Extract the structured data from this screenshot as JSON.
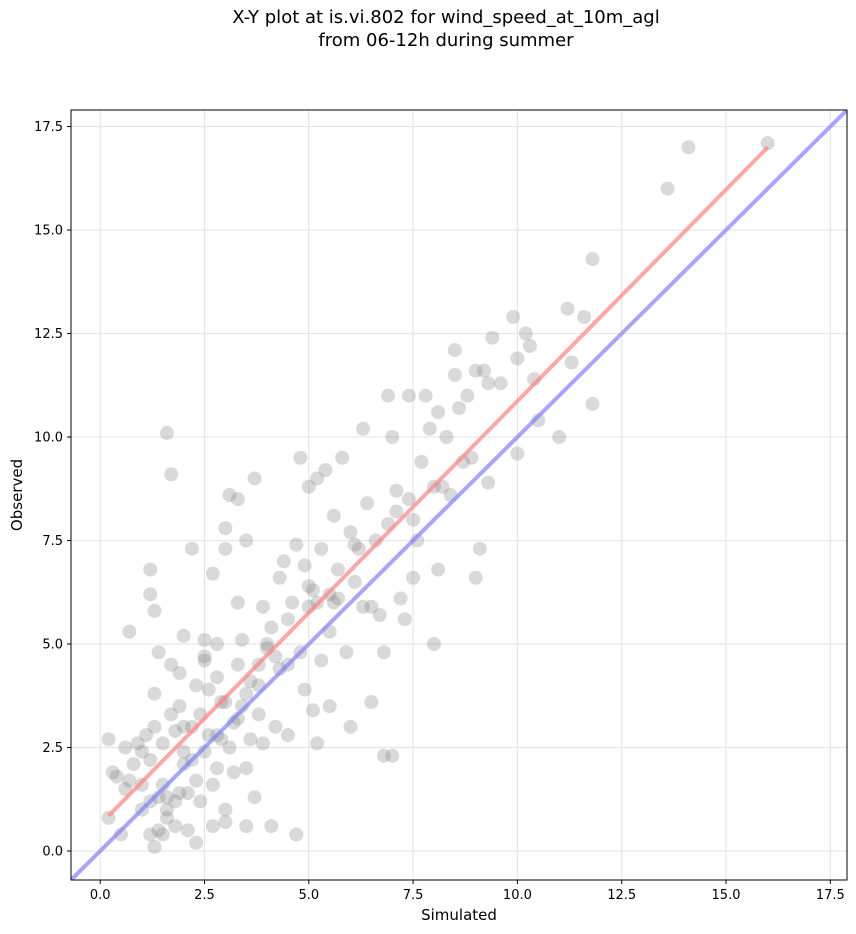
{
  "chart_data": {
    "type": "scatter",
    "title_line1": "X-Y plot at is.vi.802 for wind_speed_at_10m_agl",
    "title_line2": "from 06-12h during summer",
    "xlabel": "Simulated",
    "ylabel": "Observed",
    "xlim": [
      -0.7,
      17.9
    ],
    "ylim": [
      -0.7,
      17.9
    ],
    "xticks": [
      0.0,
      2.5,
      5.0,
      7.5,
      10.0,
      12.5,
      15.0,
      17.5
    ],
    "yticks": [
      0.0,
      2.5,
      5.0,
      7.5,
      10.0,
      12.5,
      15.0,
      17.5
    ],
    "xtick_labels": [
      "0.0",
      "2.5",
      "5.0",
      "7.5",
      "10.0",
      "12.5",
      "15.0",
      "17.5"
    ],
    "ytick_labels": [
      "0.0",
      "2.5",
      "5.0",
      "7.5",
      "10.0",
      "12.5",
      "15.0",
      "17.5"
    ],
    "grid": true,
    "colors": {
      "points": "#808080",
      "fit_line": "#ff8080",
      "one_to_one": "#8080ff"
    },
    "fit_line": {
      "x": [
        0.2,
        16.0
      ],
      "y": [
        0.85,
        17.0
      ]
    },
    "one_to_one_line": {
      "x": [
        -0.7,
        17.9
      ],
      "y": [
        -0.7,
        17.9
      ]
    },
    "points": [
      [
        0.2,
        2.7
      ],
      [
        0.2,
        0.8
      ],
      [
        0.3,
        1.9
      ],
      [
        0.4,
        1.8
      ],
      [
        0.5,
        0.4
      ],
      [
        0.6,
        1.5
      ],
      [
        0.6,
        2.5
      ],
      [
        0.7,
        5.3
      ],
      [
        0.7,
        1.7
      ],
      [
        0.8,
        2.1
      ],
      [
        0.9,
        2.6
      ],
      [
        1.0,
        1.0
      ],
      [
        1.0,
        2.4
      ],
      [
        1.0,
        1.6
      ],
      [
        1.1,
        2.8
      ],
      [
        1.2,
        0.4
      ],
      [
        1.2,
        1.2
      ],
      [
        1.2,
        2.2
      ],
      [
        1.2,
        6.8
      ],
      [
        1.2,
        6.2
      ],
      [
        1.3,
        0.1
      ],
      [
        1.3,
        3.0
      ],
      [
        1.3,
        3.8
      ],
      [
        1.3,
        5.8
      ],
      [
        1.4,
        4.8
      ],
      [
        1.4,
        0.5
      ],
      [
        1.4,
        1.3
      ],
      [
        1.5,
        1.6
      ],
      [
        1.5,
        2.6
      ],
      [
        1.5,
        0.4
      ],
      [
        1.6,
        1.3
      ],
      [
        1.6,
        0.8
      ],
      [
        1.6,
        10.1
      ],
      [
        1.7,
        3.3
      ],
      [
        1.7,
        4.5
      ],
      [
        1.7,
        9.1
      ],
      [
        1.8,
        0.6
      ],
      [
        1.8,
        1.2
      ],
      [
        1.8,
        2.9
      ],
      [
        1.9,
        4.3
      ],
      [
        1.9,
        3.5
      ],
      [
        1.9,
        1.4
      ],
      [
        2.0,
        2.1
      ],
      [
        2.0,
        5.2
      ],
      [
        2.1,
        0.5
      ],
      [
        2.1,
        1.4
      ],
      [
        2.2,
        7.3
      ],
      [
        2.2,
        2.2
      ],
      [
        2.2,
        3.0
      ],
      [
        2.3,
        4.0
      ],
      [
        2.3,
        1.7
      ],
      [
        2.3,
        0.2
      ],
      [
        2.4,
        3.3
      ],
      [
        2.4,
        1.2
      ],
      [
        2.5,
        5.1
      ],
      [
        2.5,
        2.4
      ],
      [
        2.5,
        4.6
      ],
      [
        2.6,
        3.9
      ],
      [
        2.6,
        2.8
      ],
      [
        2.7,
        0.6
      ],
      [
        2.7,
        1.6
      ],
      [
        2.7,
        6.7
      ],
      [
        2.8,
        2.0
      ],
      [
        2.8,
        4.2
      ],
      [
        2.8,
        5.0
      ],
      [
        2.9,
        2.7
      ],
      [
        2.9,
        3.6
      ],
      [
        3.0,
        0.7
      ],
      [
        3.0,
        1.0
      ],
      [
        3.0,
        7.3
      ],
      [
        3.0,
        7.8
      ],
      [
        3.1,
        2.5
      ],
      [
        3.1,
        8.6
      ],
      [
        3.2,
        1.9
      ],
      [
        3.2,
        3.1
      ],
      [
        3.3,
        4.5
      ],
      [
        3.3,
        6.0
      ],
      [
        3.3,
        8.5
      ],
      [
        3.4,
        3.5
      ],
      [
        3.4,
        5.1
      ],
      [
        3.5,
        0.6
      ],
      [
        3.5,
        2.0
      ],
      [
        3.5,
        7.5
      ],
      [
        3.6,
        4.1
      ],
      [
        3.6,
        2.7
      ],
      [
        3.7,
        1.3
      ],
      [
        3.7,
        9.0
      ],
      [
        3.8,
        3.3
      ],
      [
        3.8,
        4.0
      ],
      [
        3.9,
        5.9
      ],
      [
        3.9,
        2.6
      ],
      [
        4.0,
        4.9
      ],
      [
        4.1,
        0.6
      ],
      [
        4.1,
        5.4
      ],
      [
        4.2,
        4.7
      ],
      [
        4.2,
        3.0
      ],
      [
        4.3,
        6.6
      ],
      [
        4.4,
        7.0
      ],
      [
        4.5,
        4.5
      ],
      [
        4.5,
        2.8
      ],
      [
        4.6,
        6.0
      ],
      [
        4.7,
        7.4
      ],
      [
        4.7,
        0.4
      ],
      [
        4.8,
        4.8
      ],
      [
        4.8,
        9.5
      ],
      [
        4.9,
        3.9
      ],
      [
        4.9,
        6.9
      ],
      [
        5.0,
        8.8
      ],
      [
        5.0,
        5.9
      ],
      [
        5.1,
        3.4
      ],
      [
        5.1,
        6.3
      ],
      [
        5.2,
        9.0
      ],
      [
        5.2,
        2.6
      ],
      [
        5.3,
        4.6
      ],
      [
        5.3,
        7.3
      ],
      [
        5.4,
        9.2
      ],
      [
        5.5,
        5.3
      ],
      [
        5.5,
        3.5
      ],
      [
        5.6,
        6.0
      ],
      [
        5.6,
        8.1
      ],
      [
        5.7,
        6.1
      ],
      [
        5.8,
        9.5
      ],
      [
        5.9,
        4.8
      ],
      [
        6.0,
        3.0
      ],
      [
        6.0,
        7.7
      ],
      [
        6.1,
        6.5
      ],
      [
        6.2,
        7.3
      ],
      [
        6.3,
        10.2
      ],
      [
        6.3,
        5.9
      ],
      [
        6.4,
        8.4
      ],
      [
        6.5,
        3.6
      ],
      [
        6.6,
        7.5
      ],
      [
        6.7,
        5.7
      ],
      [
        6.8,
        2.3
      ],
      [
        6.8,
        4.8
      ],
      [
        6.9,
        11.0
      ],
      [
        6.9,
        7.9
      ],
      [
        7.0,
        10.0
      ],
      [
        7.0,
        2.3
      ],
      [
        7.1,
        8.7
      ],
      [
        7.2,
        6.1
      ],
      [
        7.3,
        5.6
      ],
      [
        7.4,
        11.0
      ],
      [
        7.4,
        8.5
      ],
      [
        7.5,
        6.6
      ],
      [
        7.6,
        7.5
      ],
      [
        7.7,
        9.4
      ],
      [
        7.8,
        11.0
      ],
      [
        7.9,
        10.2
      ],
      [
        8.0,
        5.0
      ],
      [
        8.1,
        10.6
      ],
      [
        8.1,
        6.8
      ],
      [
        8.2,
        8.8
      ],
      [
        8.3,
        10.0
      ],
      [
        8.4,
        8.6
      ],
      [
        8.5,
        11.5
      ],
      [
        8.5,
        12.1
      ],
      [
        8.6,
        10.7
      ],
      [
        8.7,
        9.4
      ],
      [
        8.8,
        11.0
      ],
      [
        8.9,
        9.5
      ],
      [
        9.0,
        11.6
      ],
      [
        9.0,
        6.6
      ],
      [
        9.1,
        7.3
      ],
      [
        9.2,
        11.6
      ],
      [
        9.3,
        11.3
      ],
      [
        9.3,
        8.9
      ],
      [
        9.4,
        12.4
      ],
      [
        9.6,
        11.3
      ],
      [
        9.9,
        12.9
      ],
      [
        10.0,
        9.6
      ],
      [
        10.0,
        11.9
      ],
      [
        10.2,
        12.5
      ],
      [
        10.3,
        12.2
      ],
      [
        10.4,
        11.4
      ],
      [
        10.5,
        10.4
      ],
      [
        11.0,
        10.0
      ],
      [
        11.2,
        13.1
      ],
      [
        11.3,
        11.8
      ],
      [
        11.6,
        12.9
      ],
      [
        11.8,
        14.3
      ],
      [
        11.8,
        10.8
      ],
      [
        13.6,
        16.0
      ],
      [
        14.1,
        17.0
      ],
      [
        16.0,
        17.1
      ],
      [
        2.5,
        4.7
      ],
      [
        3.3,
        3.2
      ],
      [
        4.0,
        5.0
      ],
      [
        5.0,
        6.4
      ],
      [
        5.7,
        6.8
      ],
      [
        6.1,
        7.4
      ],
      [
        7.1,
        8.2
      ],
      [
        8.0,
        8.8
      ],
      [
        2.0,
        3.0
      ],
      [
        3.0,
        3.6
      ],
      [
        4.5,
        5.6
      ],
      [
        5.5,
        6.2
      ],
      [
        3.8,
        4.5
      ],
      [
        2.8,
        2.8
      ],
      [
        1.6,
        1.0
      ],
      [
        2.0,
        2.4
      ],
      [
        3.5,
        3.8
      ],
      [
        4.3,
        4.4
      ],
      [
        5.2,
        6.0
      ],
      [
        6.5,
        5.9
      ],
      [
        7.5,
        8.0
      ]
    ]
  }
}
